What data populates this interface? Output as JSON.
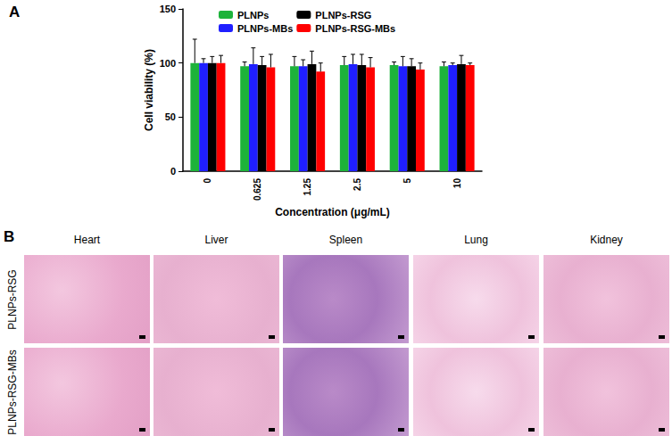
{
  "chart_data": {
    "type": "bar",
    "annotations": [
      "A"
    ],
    "x_label": "Concentration (μg/mL)",
    "y_label": "Cell viability (%)",
    "categories": [
      "0",
      "0.625",
      "1.25",
      "2.5",
      "5",
      "10"
    ],
    "series": [
      {
        "name": "PLNPs",
        "color": "#1db33a",
        "values": [
          100,
          97,
          97,
          98,
          98,
          97
        ],
        "errors": [
          22,
          4,
          9,
          8,
          3,
          4
        ]
      },
      {
        "name": "PLNPs-MBs",
        "color": "#1f1fff",
        "values": [
          100,
          99,
          97,
          99,
          97,
          98
        ],
        "errors": [
          4,
          15,
          6,
          9,
          9,
          2
        ]
      },
      {
        "name": "PLNPs-RSG",
        "color": "#000000",
        "values": [
          100,
          98,
          99,
          98,
          97,
          99
        ],
        "errors": [
          6,
          8,
          12,
          10,
          7,
          8
        ]
      },
      {
        "name": "PLNPs-RSG-MBs",
        "color": "#ff0000",
        "values": [
          100,
          96,
          92,
          96,
          94,
          98
        ],
        "errors": [
          7,
          12,
          8,
          9,
          6,
          2
        ]
      }
    ],
    "ylim": [
      0,
      150
    ],
    "yticks": [
      0,
      50,
      100,
      150
    ],
    "grid": false,
    "legend": "top"
  },
  "histology": {
    "panel_label": "B",
    "columns": [
      "Heart",
      "Liver",
      "Spleen",
      "Lung",
      "Kidney"
    ],
    "rows": [
      "PLNPs-RSG",
      "PLNPs-RSG-MBs"
    ]
  }
}
